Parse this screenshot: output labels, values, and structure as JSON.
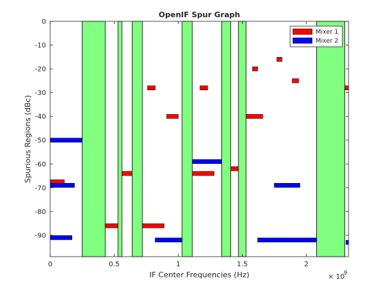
{
  "chart_data": {
    "type": "bar",
    "title": "OpenIF Spur Graph",
    "xlabel": "IF Center Frequencies (Hz)",
    "ylabel": "Spurious Regions (dBc)",
    "x_exponent_label": "× 10",
    "x_exponent_power": "9",
    "xlim": [
      0,
      2330000000.0
    ],
    "ylim": [
      -99,
      0
    ],
    "x_ticks": [
      0,
      500000000.0,
      1000000000.0,
      1500000000.0,
      2000000000.0
    ],
    "x_tick_labels": [
      "0",
      "0.5",
      "1",
      "1.5",
      "2"
    ],
    "y_ticks": [
      0,
      -10,
      -20,
      -30,
      -40,
      -50,
      -60,
      -70,
      -80,
      -90
    ],
    "y_tick_labels": [
      "0",
      "-10",
      "-20",
      "-30",
      "-40",
      "-50",
      "-60",
      "-70",
      "-80",
      "-90"
    ],
    "grid": false,
    "legend_position": "top-right",
    "clear_regions": {
      "color": "#80ff80",
      "spans": [
        [
          250000000.0,
          430000000.0
        ],
        [
          530000000.0,
          560000000.0
        ],
        [
          640000000.0,
          720000000.0
        ],
        [
          1030000000.0,
          1110000000.0
        ],
        [
          1340000000.0,
          1410000000.0
        ],
        [
          1470000000.0,
          1530000000.0
        ],
        [
          2080000000.0,
          2300000000.0
        ]
      ]
    },
    "series": [
      {
        "name": "Mixer 1",
        "color": "#ff0000",
        "spurs": [
          {
            "x_start": 0.0,
            "x_end": 110000000.0,
            "level": -67.5
          },
          {
            "x_start": 430000000.0,
            "x_end": 530000000.0,
            "level": -86
          },
          {
            "x_start": 560000000.0,
            "x_end": 640000000.0,
            "level": -64
          },
          {
            "x_start": 760000000.0,
            "x_end": 820000000.0,
            "level": -28
          },
          {
            "x_start": 720000000.0,
            "x_end": 890000000.0,
            "level": -86
          },
          {
            "x_start": 910000000.0,
            "x_end": 1000000000.0,
            "level": -40
          },
          {
            "x_start": 1170000000.0,
            "x_end": 1230000000.0,
            "level": -28
          },
          {
            "x_start": 1110000000.0,
            "x_end": 1280000000.0,
            "level": -64
          },
          {
            "x_start": 1410000000.0,
            "x_end": 1470000000.0,
            "level": -62
          },
          {
            "x_start": 1530000000.0,
            "x_end": 1660000000.0,
            "level": -40
          },
          {
            "x_start": 1580000000.0,
            "x_end": 1620000000.0,
            "level": -20
          },
          {
            "x_start": 1770000000.0,
            "x_end": 1810000000.0,
            "level": -16
          },
          {
            "x_start": 1890000000.0,
            "x_end": 1940000000.0,
            "level": -25
          },
          {
            "x_start": 2300000000.0,
            "x_end": 2330000000.0,
            "level": -28
          }
        ]
      },
      {
        "name": "Mixer 2",
        "color": "#0000ff",
        "spurs": [
          {
            "x_start": 0.0,
            "x_end": 250000000.0,
            "level": -50
          },
          {
            "x_start": 0.0,
            "x_end": 190000000.0,
            "level": -69
          },
          {
            "x_start": 0.0,
            "x_end": 170000000.0,
            "level": -91
          },
          {
            "x_start": 820000000.0,
            "x_end": 1030000000.0,
            "level": -92
          },
          {
            "x_start": 1110000000.0,
            "x_end": 1340000000.0,
            "level": -59
          },
          {
            "x_start": 1750000000.0,
            "x_end": 1950000000.0,
            "level": -69
          },
          {
            "x_start": 1620000000.0,
            "x_end": 2080000000.0,
            "level": -92
          },
          {
            "x_start": 2310000000.0,
            "x_end": 2330000000.0,
            "level": -93
          }
        ]
      }
    ]
  }
}
